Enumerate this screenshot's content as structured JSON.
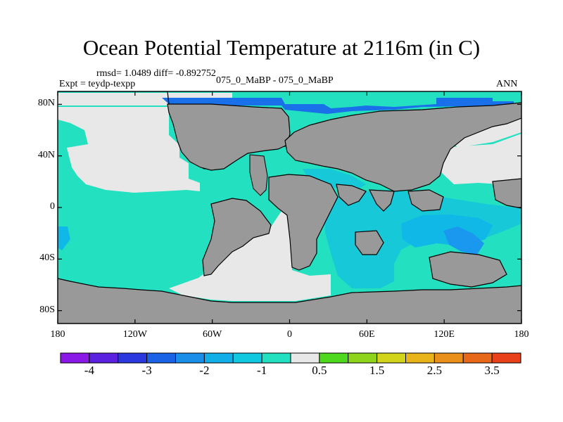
{
  "title": "Ocean Potential Temperature at 2116m (in C)",
  "stats_text": "rmsd= 1.0489 diff= -0.892752",
  "expt_text": "Expt = teydp-texpp",
  "case_text": "075_0_MaBP - 075_0_MaBP",
  "season_text": "ANN",
  "map": {
    "lon_range": [
      -180,
      180
    ],
    "lat_range": [
      -90,
      90
    ],
    "lat_ticks": [
      {
        "value": 80,
        "label": "80N"
      },
      {
        "value": 40,
        "label": "40N"
      },
      {
        "value": 0,
        "label": "0"
      },
      {
        "value": -40,
        "label": "40S"
      },
      {
        "value": -80,
        "label": "80S"
      }
    ],
    "lon_ticks": [
      {
        "value": -180,
        "label": "180"
      },
      {
        "value": -120,
        "label": "120W"
      },
      {
        "value": -60,
        "label": "60W"
      },
      {
        "value": 0,
        "label": "0"
      },
      {
        "value": 60,
        "label": "60E"
      },
      {
        "value": 120,
        "label": "120E"
      },
      {
        "value": 180,
        "label": "180"
      }
    ],
    "colors": {
      "land": "#999999",
      "near_zero": "#e8e8e8",
      "minus_1": "#22e0c0",
      "minus_1_5": "#16c8d8",
      "minus_2": "#10b8e8",
      "minus_2_5": "#1a98f0",
      "minus_3": "#1a70e8"
    }
  },
  "colorbar": {
    "colors": [
      "#8a18e6",
      "#5a22e0",
      "#2a38e0",
      "#1a62e6",
      "#1a8ee8",
      "#12aee8",
      "#10c8e0",
      "#22e0c0",
      "#e8e8e8",
      "#4ed81e",
      "#8ed41c",
      "#d2d41c",
      "#e8b41a",
      "#e8901a",
      "#e8681a",
      "#e8401a"
    ],
    "labels": [
      {
        "label": "-4",
        "boundary": 1
      },
      {
        "label": "-3",
        "boundary": 3
      },
      {
        "label": "-2",
        "boundary": 5
      },
      {
        "label": "-1",
        "boundary": 7
      },
      {
        "label": "0.5",
        "boundary": 9
      },
      {
        "label": "1.5",
        "boundary": 11
      },
      {
        "label": "2.5",
        "boundary": 13
      },
      {
        "label": "3.5",
        "boundary": 15
      }
    ]
  }
}
